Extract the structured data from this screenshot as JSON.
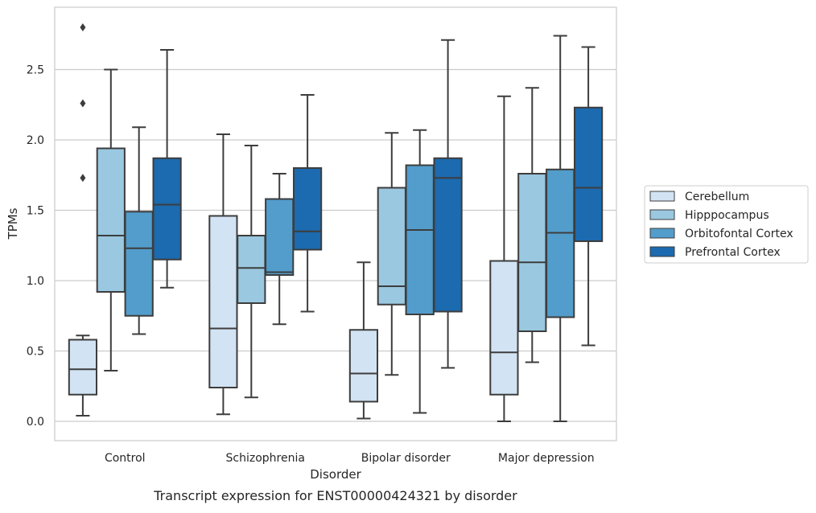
{
  "chart_data": {
    "type": "box",
    "title": "",
    "caption": "Transcript expression for ENST00000424321 by disorder",
    "xlabel": "Disorder",
    "ylabel": "TPMs",
    "ylim": [
      -0.14,
      2.94
    ],
    "yticks": [
      0.0,
      0.5,
      1.0,
      1.5,
      2.0,
      2.5
    ],
    "ytick_labels": [
      "0.0",
      "0.5",
      "1.0",
      "1.5",
      "2.0",
      "2.5"
    ],
    "grid": "horizontal",
    "legend_position": "right",
    "categories": [
      "Control",
      "Schizophrenia",
      "Bipolar disorder",
      "Major depression"
    ],
    "series": [
      {
        "name": "Cerebellum",
        "color": "#d2e3f3",
        "boxes": [
          {
            "whisker_low": 0.04,
            "q1": 0.19,
            "median": 0.37,
            "q3": 0.58,
            "whisker_high": 0.61,
            "outliers": [
              1.73,
              2.26,
              2.8
            ]
          },
          {
            "whisker_low": 0.05,
            "q1": 0.24,
            "median": 0.66,
            "q3": 1.46,
            "whisker_high": 2.04,
            "outliers": []
          },
          {
            "whisker_low": 0.02,
            "q1": 0.14,
            "median": 0.34,
            "q3": 0.65,
            "whisker_high": 1.13,
            "outliers": []
          },
          {
            "whisker_low": 0.0,
            "q1": 0.19,
            "median": 0.49,
            "q3": 1.14,
            "whisker_high": 2.31,
            "outliers": []
          }
        ]
      },
      {
        "name": "Hipppocampus",
        "color": "#9ac8e0",
        "boxes": [
          {
            "whisker_low": 0.36,
            "q1": 0.92,
            "median": 1.32,
            "q3": 1.94,
            "whisker_high": 2.5,
            "outliers": []
          },
          {
            "whisker_low": 0.17,
            "q1": 0.84,
            "median": 1.09,
            "q3": 1.32,
            "whisker_high": 1.96,
            "outliers": []
          },
          {
            "whisker_low": 0.33,
            "q1": 0.83,
            "median": 0.96,
            "q3": 1.66,
            "whisker_high": 2.05,
            "outliers": []
          },
          {
            "whisker_low": 0.42,
            "q1": 0.64,
            "median": 1.13,
            "q3": 1.76,
            "whisker_high": 2.37,
            "outliers": []
          }
        ]
      },
      {
        "name": "Orbitofontal Cortex",
        "color": "#529dcc",
        "boxes": [
          {
            "whisker_low": 0.62,
            "q1": 0.75,
            "median": 1.23,
            "q3": 1.49,
            "whisker_high": 2.09,
            "outliers": []
          },
          {
            "whisker_low": 0.69,
            "q1": 1.04,
            "median": 1.06,
            "q3": 1.58,
            "whisker_high": 1.76,
            "outliers": []
          },
          {
            "whisker_low": 0.06,
            "q1": 0.76,
            "median": 1.36,
            "q3": 1.82,
            "whisker_high": 2.07,
            "outliers": []
          },
          {
            "whisker_low": 0.0,
            "q1": 0.74,
            "median": 1.34,
            "q3": 1.79,
            "whisker_high": 2.74,
            "outliers": []
          }
        ]
      },
      {
        "name": "Prefrontal Cortex",
        "color": "#1c6aaf",
        "boxes": [
          {
            "whisker_low": 0.95,
            "q1": 1.15,
            "median": 1.54,
            "q3": 1.87,
            "whisker_high": 2.64,
            "outliers": []
          },
          {
            "whisker_low": 0.78,
            "q1": 1.22,
            "median": 1.35,
            "q3": 1.8,
            "whisker_high": 2.32,
            "outliers": []
          },
          {
            "whisker_low": 0.38,
            "q1": 0.78,
            "median": 1.73,
            "q3": 1.87,
            "whisker_high": 2.71,
            "outliers": []
          },
          {
            "whisker_low": 0.54,
            "q1": 1.28,
            "median": 1.66,
            "q3": 2.23,
            "whisker_high": 2.66,
            "outliers": []
          }
        ]
      }
    ]
  }
}
